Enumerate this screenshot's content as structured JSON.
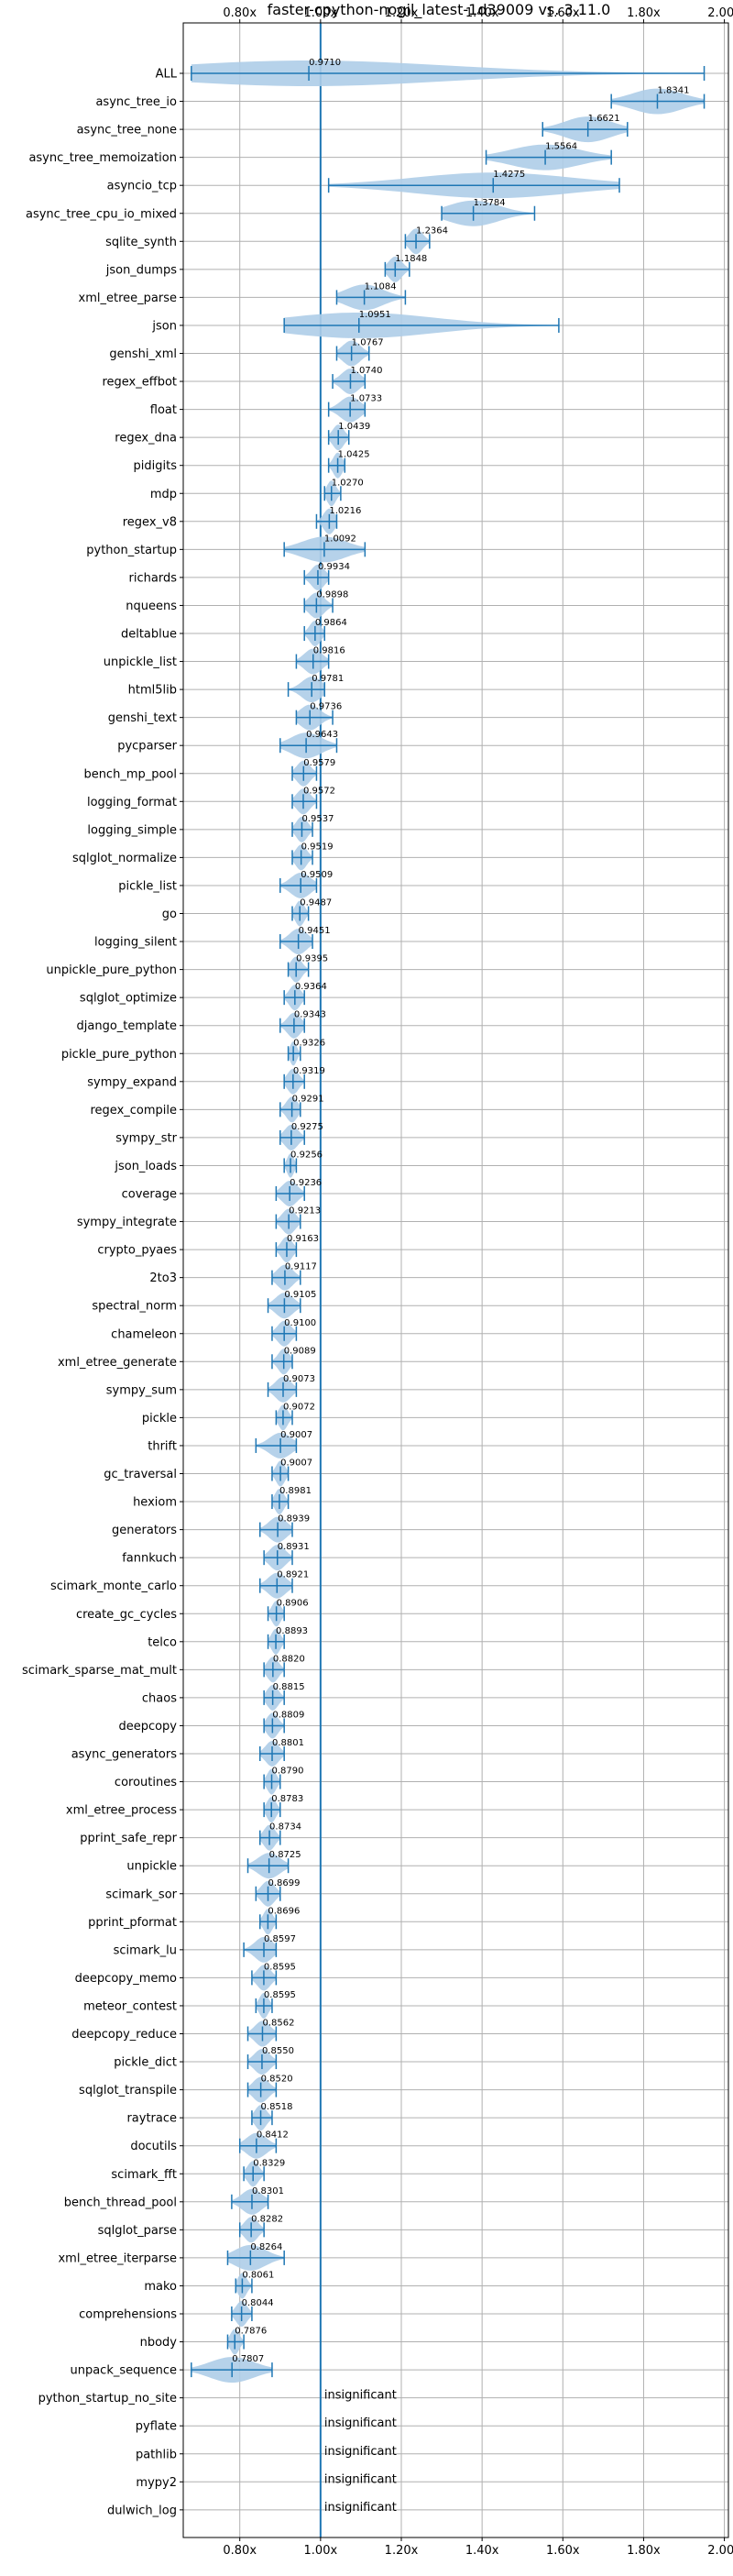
{
  "chart_data": {
    "type": "violin",
    "title": "faster-cpython-nogil_latest-1d39009 vs. 3.11.0",
    "xlabel": "",
    "ylabel": "",
    "xlim": [
      0.66,
      2.01
    ],
    "x_ticks": [
      0.8,
      1.0,
      1.2,
      1.4,
      1.6,
      1.8,
      2.0
    ],
    "x_tick_labels": [
      "0.80x",
      "1.00x",
      "1.20x",
      "1.40x",
      "1.60x",
      "1.80x",
      "2.00x"
    ],
    "reference_line": 1.0,
    "grid": true,
    "colors": {
      "violin": "#aecde8",
      "whisker": "#1f77b4",
      "reference": "#1f77b4",
      "grid": "#b0b0b0"
    },
    "benchmarks": [
      {
        "name": "ALL",
        "label": "0.9710",
        "mean": 0.971,
        "min": 0.68,
        "max": 1.95
      },
      {
        "name": "async_tree_io",
        "label": "1.8341",
        "mean": 1.8341,
        "min": 1.72,
        "max": 1.95
      },
      {
        "name": "async_tree_none",
        "label": "1.6621",
        "mean": 1.6621,
        "min": 1.55,
        "max": 1.76
      },
      {
        "name": "async_tree_memoization",
        "label": "1.5564",
        "mean": 1.5564,
        "min": 1.41,
        "max": 1.72
      },
      {
        "name": "asyncio_tcp",
        "label": "1.4275",
        "mean": 1.4275,
        "min": 1.02,
        "max": 1.74
      },
      {
        "name": "async_tree_cpu_io_mixed",
        "label": "1.3784",
        "mean": 1.3784,
        "min": 1.3,
        "max": 1.53
      },
      {
        "name": "sqlite_synth",
        "label": "1.2364",
        "mean": 1.2364,
        "min": 1.21,
        "max": 1.27
      },
      {
        "name": "json_dumps",
        "label": "1.1848",
        "mean": 1.1848,
        "min": 1.16,
        "max": 1.22
      },
      {
        "name": "xml_etree_parse",
        "label": "1.1084",
        "mean": 1.1084,
        "min": 1.04,
        "max": 1.21
      },
      {
        "name": "json",
        "label": "1.0951",
        "mean": 1.0951,
        "min": 0.91,
        "max": 1.59
      },
      {
        "name": "genshi_xml",
        "label": "1.0767",
        "mean": 1.0767,
        "min": 1.04,
        "max": 1.12
      },
      {
        "name": "regex_effbot",
        "label": "1.0740",
        "mean": 1.074,
        "min": 1.03,
        "max": 1.11
      },
      {
        "name": "float",
        "label": "1.0733",
        "mean": 1.0733,
        "min": 1.02,
        "max": 1.11
      },
      {
        "name": "regex_dna",
        "label": "1.0439",
        "mean": 1.0439,
        "min": 1.02,
        "max": 1.07
      },
      {
        "name": "pidigits",
        "label": "1.0425",
        "mean": 1.0425,
        "min": 1.02,
        "max": 1.06
      },
      {
        "name": "mdp",
        "label": "1.0270",
        "mean": 1.027,
        "min": 1.01,
        "max": 1.05
      },
      {
        "name": "regex_v8",
        "label": "1.0216",
        "mean": 1.0216,
        "min": 0.99,
        "max": 1.04
      },
      {
        "name": "python_startup",
        "label": "1.0092",
        "mean": 1.0092,
        "min": 0.91,
        "max": 1.11
      },
      {
        "name": "richards",
        "label": "0.9934",
        "mean": 0.9934,
        "min": 0.96,
        "max": 1.02
      },
      {
        "name": "nqueens",
        "label": "0.9898",
        "mean": 0.9898,
        "min": 0.96,
        "max": 1.03
      },
      {
        "name": "deltablue",
        "label": "0.9864",
        "mean": 0.9864,
        "min": 0.96,
        "max": 1.01
      },
      {
        "name": "unpickle_list",
        "label": "0.9816",
        "mean": 0.9816,
        "min": 0.94,
        "max": 1.02
      },
      {
        "name": "html5lib",
        "label": "0.9781",
        "mean": 0.9781,
        "min": 0.92,
        "max": 1.01
      },
      {
        "name": "genshi_text",
        "label": "0.9736",
        "mean": 0.9736,
        "min": 0.94,
        "max": 1.03
      },
      {
        "name": "pycparser",
        "label": "0.9643",
        "mean": 0.9643,
        "min": 0.9,
        "max": 1.04
      },
      {
        "name": "bench_mp_pool",
        "label": "0.9579",
        "mean": 0.9579,
        "min": 0.93,
        "max": 0.99
      },
      {
        "name": "logging_format",
        "label": "0.9572",
        "mean": 0.9572,
        "min": 0.93,
        "max": 0.99
      },
      {
        "name": "logging_simple",
        "label": "0.9537",
        "mean": 0.9537,
        "min": 0.93,
        "max": 0.98
      },
      {
        "name": "sqlglot_normalize",
        "label": "0.9519",
        "mean": 0.9519,
        "min": 0.93,
        "max": 0.98
      },
      {
        "name": "pickle_list",
        "label": "0.9509",
        "mean": 0.9509,
        "min": 0.9,
        "max": 0.99
      },
      {
        "name": "go",
        "label": "0.9487",
        "mean": 0.9487,
        "min": 0.93,
        "max": 0.97
      },
      {
        "name": "logging_silent",
        "label": "0.9451",
        "mean": 0.9451,
        "min": 0.9,
        "max": 0.98
      },
      {
        "name": "unpickle_pure_python",
        "label": "0.9395",
        "mean": 0.9395,
        "min": 0.92,
        "max": 0.97
      },
      {
        "name": "sqlglot_optimize",
        "label": "0.9364",
        "mean": 0.9364,
        "min": 0.91,
        "max": 0.96
      },
      {
        "name": "django_template",
        "label": "0.9343",
        "mean": 0.9343,
        "min": 0.9,
        "max": 0.96
      },
      {
        "name": "pickle_pure_python",
        "label": "0.9326",
        "mean": 0.9326,
        "min": 0.92,
        "max": 0.95
      },
      {
        "name": "sympy_expand",
        "label": "0.9319",
        "mean": 0.9319,
        "min": 0.91,
        "max": 0.96
      },
      {
        "name": "regex_compile",
        "label": "0.9291",
        "mean": 0.9291,
        "min": 0.9,
        "max": 0.95
      },
      {
        "name": "sympy_str",
        "label": "0.9275",
        "mean": 0.9275,
        "min": 0.9,
        "max": 0.96
      },
      {
        "name": "json_loads",
        "label": "0.9256",
        "mean": 0.9256,
        "min": 0.91,
        "max": 0.94
      },
      {
        "name": "coverage",
        "label": "0.9236",
        "mean": 0.9236,
        "min": 0.89,
        "max": 0.96
      },
      {
        "name": "sympy_integrate",
        "label": "0.9213",
        "mean": 0.9213,
        "min": 0.89,
        "max": 0.95
      },
      {
        "name": "crypto_pyaes",
        "label": "0.9163",
        "mean": 0.9163,
        "min": 0.89,
        "max": 0.94
      },
      {
        "name": "2to3",
        "label": "0.9117",
        "mean": 0.9117,
        "min": 0.88,
        "max": 0.95
      },
      {
        "name": "spectral_norm",
        "label": "0.9105",
        "mean": 0.9105,
        "min": 0.87,
        "max": 0.95
      },
      {
        "name": "chameleon",
        "label": "0.9100",
        "mean": 0.91,
        "min": 0.88,
        "max": 0.94
      },
      {
        "name": "xml_etree_generate",
        "label": "0.9089",
        "mean": 0.9089,
        "min": 0.88,
        "max": 0.93
      },
      {
        "name": "sympy_sum",
        "label": "0.9073",
        "mean": 0.9073,
        "min": 0.87,
        "max": 0.94
      },
      {
        "name": "pickle",
        "label": "0.9072",
        "mean": 0.9072,
        "min": 0.89,
        "max": 0.93
      },
      {
        "name": "thrift",
        "label": "0.9007",
        "mean": 0.9007,
        "min": 0.84,
        "max": 0.94
      },
      {
        "name": "gc_traversal",
        "label": "0.9007",
        "mean": 0.9007,
        "min": 0.88,
        "max": 0.92
      },
      {
        "name": "hexiom",
        "label": "0.8981",
        "mean": 0.8981,
        "min": 0.88,
        "max": 0.92
      },
      {
        "name": "generators",
        "label": "0.8939",
        "mean": 0.8939,
        "min": 0.85,
        "max": 0.93
      },
      {
        "name": "fannkuch",
        "label": "0.8931",
        "mean": 0.8931,
        "min": 0.86,
        "max": 0.93
      },
      {
        "name": "scimark_monte_carlo",
        "label": "0.8921",
        "mean": 0.8921,
        "min": 0.85,
        "max": 0.93
      },
      {
        "name": "create_gc_cycles",
        "label": "0.8906",
        "mean": 0.8906,
        "min": 0.87,
        "max": 0.91
      },
      {
        "name": "telco",
        "label": "0.8893",
        "mean": 0.8893,
        "min": 0.87,
        "max": 0.91
      },
      {
        "name": "scimark_sparse_mat_mult",
        "label": "0.8820",
        "mean": 0.882,
        "min": 0.86,
        "max": 0.91
      },
      {
        "name": "chaos",
        "label": "0.8815",
        "mean": 0.8815,
        "min": 0.86,
        "max": 0.91
      },
      {
        "name": "deepcopy",
        "label": "0.8809",
        "mean": 0.8809,
        "min": 0.86,
        "max": 0.91
      },
      {
        "name": "async_generators",
        "label": "0.8801",
        "mean": 0.8801,
        "min": 0.85,
        "max": 0.91
      },
      {
        "name": "coroutines",
        "label": "0.8790",
        "mean": 0.879,
        "min": 0.86,
        "max": 0.9
      },
      {
        "name": "xml_etree_process",
        "label": "0.8783",
        "mean": 0.8783,
        "min": 0.86,
        "max": 0.9
      },
      {
        "name": "pprint_safe_repr",
        "label": "0.8734",
        "mean": 0.8734,
        "min": 0.85,
        "max": 0.9
      },
      {
        "name": "unpickle",
        "label": "0.8725",
        "mean": 0.8725,
        "min": 0.82,
        "max": 0.92
      },
      {
        "name": "scimark_sor",
        "label": "0.8699",
        "mean": 0.8699,
        "min": 0.84,
        "max": 0.9
      },
      {
        "name": "pprint_pformat",
        "label": "0.8696",
        "mean": 0.8696,
        "min": 0.85,
        "max": 0.89
      },
      {
        "name": "scimark_lu",
        "label": "0.8597",
        "mean": 0.8597,
        "min": 0.81,
        "max": 0.89
      },
      {
        "name": "deepcopy_memo",
        "label": "0.8595",
        "mean": 0.8595,
        "min": 0.83,
        "max": 0.89
      },
      {
        "name": "meteor_contest",
        "label": "0.8595",
        "mean": 0.8595,
        "min": 0.84,
        "max": 0.88
      },
      {
        "name": "deepcopy_reduce",
        "label": "0.8562",
        "mean": 0.8562,
        "min": 0.82,
        "max": 0.89
      },
      {
        "name": "pickle_dict",
        "label": "0.8550",
        "mean": 0.855,
        "min": 0.82,
        "max": 0.89
      },
      {
        "name": "sqlglot_transpile",
        "label": "0.8520",
        "mean": 0.852,
        "min": 0.82,
        "max": 0.89
      },
      {
        "name": "raytrace",
        "label": "0.8518",
        "mean": 0.8518,
        "min": 0.83,
        "max": 0.88
      },
      {
        "name": "docutils",
        "label": "0.8412",
        "mean": 0.8412,
        "min": 0.8,
        "max": 0.89
      },
      {
        "name": "scimark_fft",
        "label": "0.8329",
        "mean": 0.8329,
        "min": 0.81,
        "max": 0.86
      },
      {
        "name": "bench_thread_pool",
        "label": "0.8301",
        "mean": 0.8301,
        "min": 0.78,
        "max": 0.87
      },
      {
        "name": "sqlglot_parse",
        "label": "0.8282",
        "mean": 0.8282,
        "min": 0.8,
        "max": 0.86
      },
      {
        "name": "xml_etree_iterparse",
        "label": "0.8264",
        "mean": 0.8264,
        "min": 0.77,
        "max": 0.91
      },
      {
        "name": "mako",
        "label": "0.8061",
        "mean": 0.8061,
        "min": 0.79,
        "max": 0.83
      },
      {
        "name": "comprehensions",
        "label": "0.8044",
        "mean": 0.8044,
        "min": 0.78,
        "max": 0.83
      },
      {
        "name": "nbody",
        "label": "0.7876",
        "mean": 0.7876,
        "min": 0.77,
        "max": 0.81
      },
      {
        "name": "unpack_sequence",
        "label": "0.7807",
        "mean": 0.7807,
        "min": 0.68,
        "max": 0.88
      },
      {
        "name": "python_startup_no_site",
        "label": "insignificant"
      },
      {
        "name": "pyflate",
        "label": "insignificant"
      },
      {
        "name": "pathlib",
        "label": "insignificant"
      },
      {
        "name": "mypy2",
        "label": "insignificant"
      },
      {
        "name": "dulwich_log",
        "label": "insignificant"
      }
    ]
  }
}
